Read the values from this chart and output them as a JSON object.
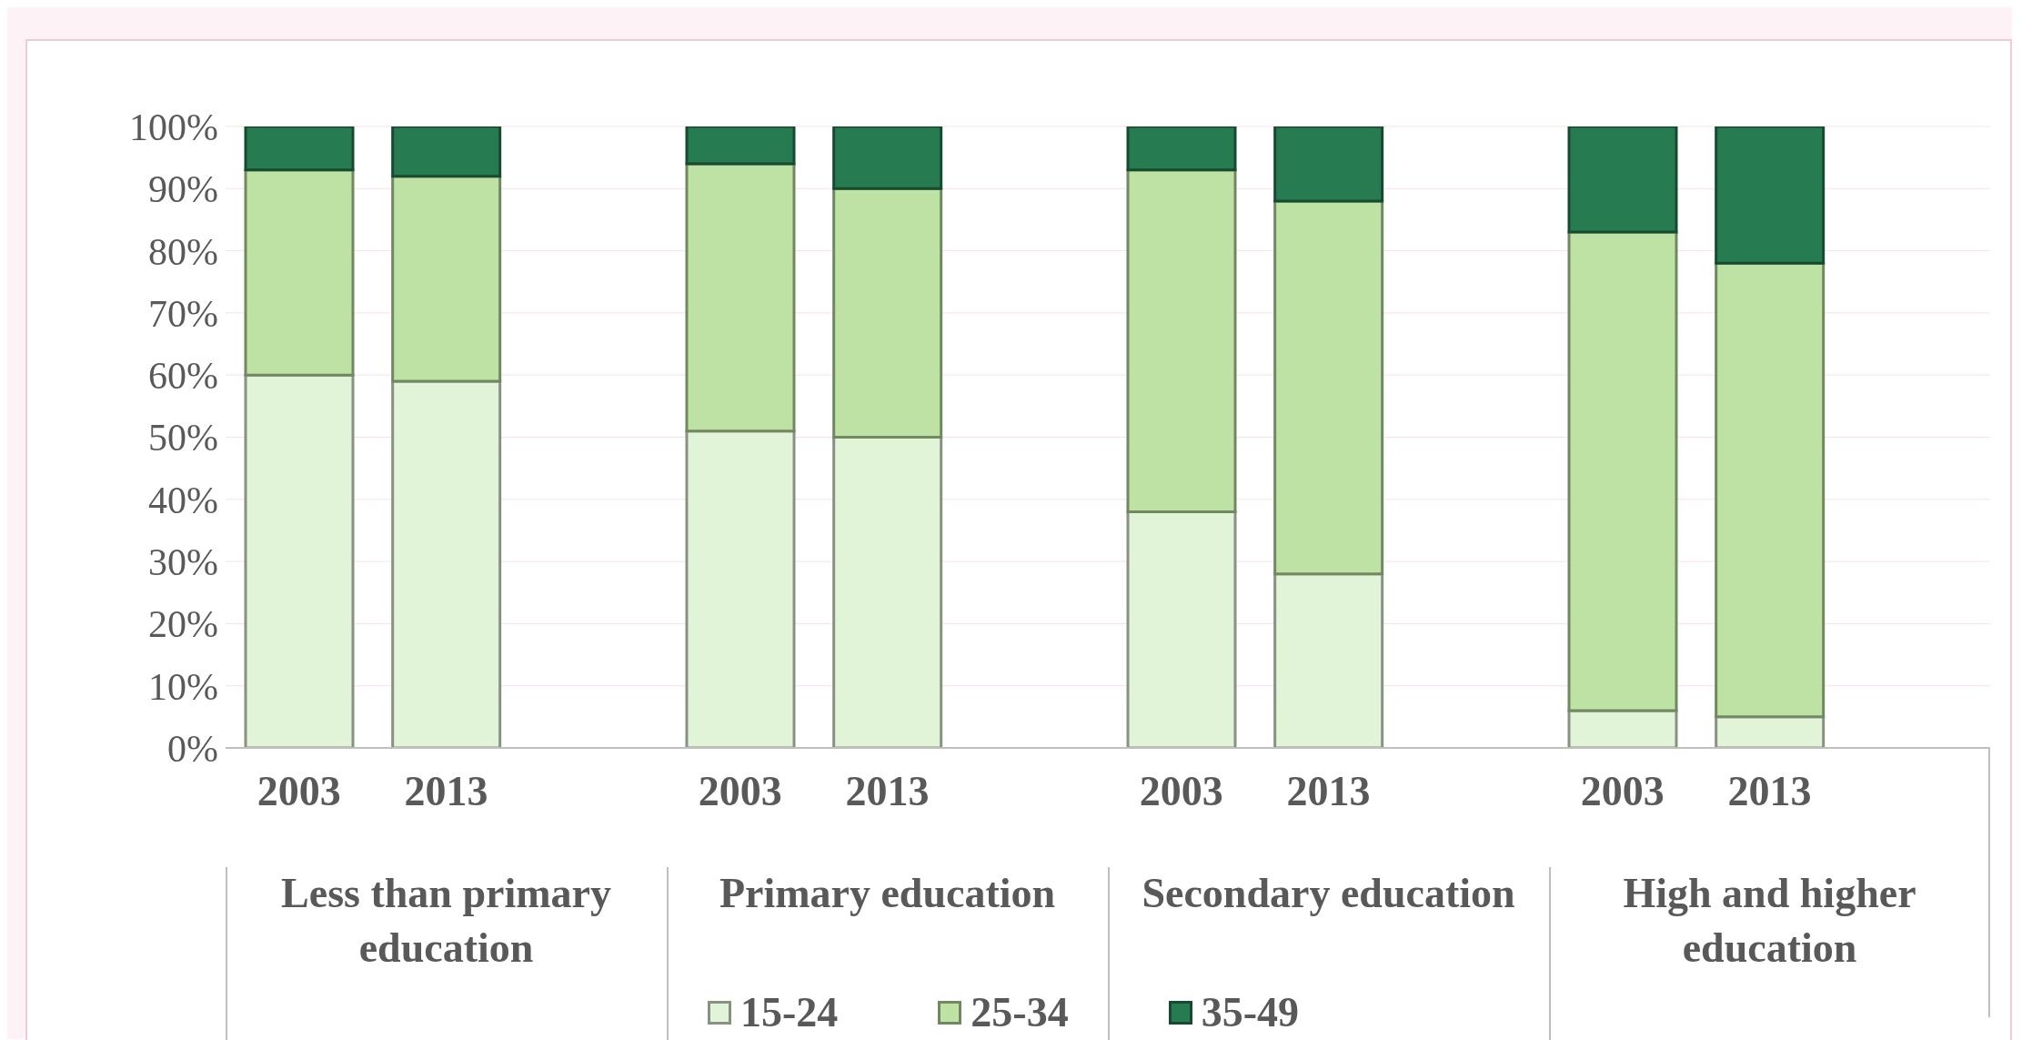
{
  "chart_data": {
    "type": "bar",
    "stacked": true,
    "categories": [
      "2003",
      "2013",
      null,
      "2003",
      "2013",
      null,
      "2003",
      "2013",
      null,
      "2003",
      "2013",
      null
    ],
    "series": [
      {
        "name": "15-24",
        "color": "#e2f4d8",
        "values": [
          60,
          59,
          null,
          51,
          50,
          null,
          38,
          28,
          null,
          6,
          5,
          null
        ]
      },
      {
        "name": "25-34",
        "color": "#bde2a3",
        "values": [
          33,
          33,
          null,
          43,
          40,
          null,
          55,
          60,
          null,
          77,
          73,
          null
        ]
      },
      {
        "name": "35-49",
        "color": "#267c50",
        "values": [
          7,
          8,
          null,
          6,
          10,
          null,
          7,
          12,
          null,
          17,
          22,
          null
        ]
      }
    ],
    "annotations": [
      "Less than primary education",
      "Primary education",
      "Secondary education",
      "High and higher education"
    ],
    "ylim": [
      0,
      100
    ],
    "yticks": [
      {
        "value": 0,
        "label": "0%"
      },
      {
        "value": 10,
        "label": "10%"
      },
      {
        "value": 20,
        "label": "20%"
      },
      {
        "value": 30,
        "label": "30%"
      },
      {
        "value": 40,
        "label": "40%"
      },
      {
        "value": 50,
        "label": "50%"
      },
      {
        "value": 60,
        "label": "60%"
      },
      {
        "value": 70,
        "label": "70%"
      },
      {
        "value": 80,
        "label": "80%"
      },
      {
        "value": 90,
        "label": "90%"
      },
      {
        "value": 100,
        "label": "100%"
      }
    ],
    "grid": "y",
    "legend": "bottom"
  }
}
